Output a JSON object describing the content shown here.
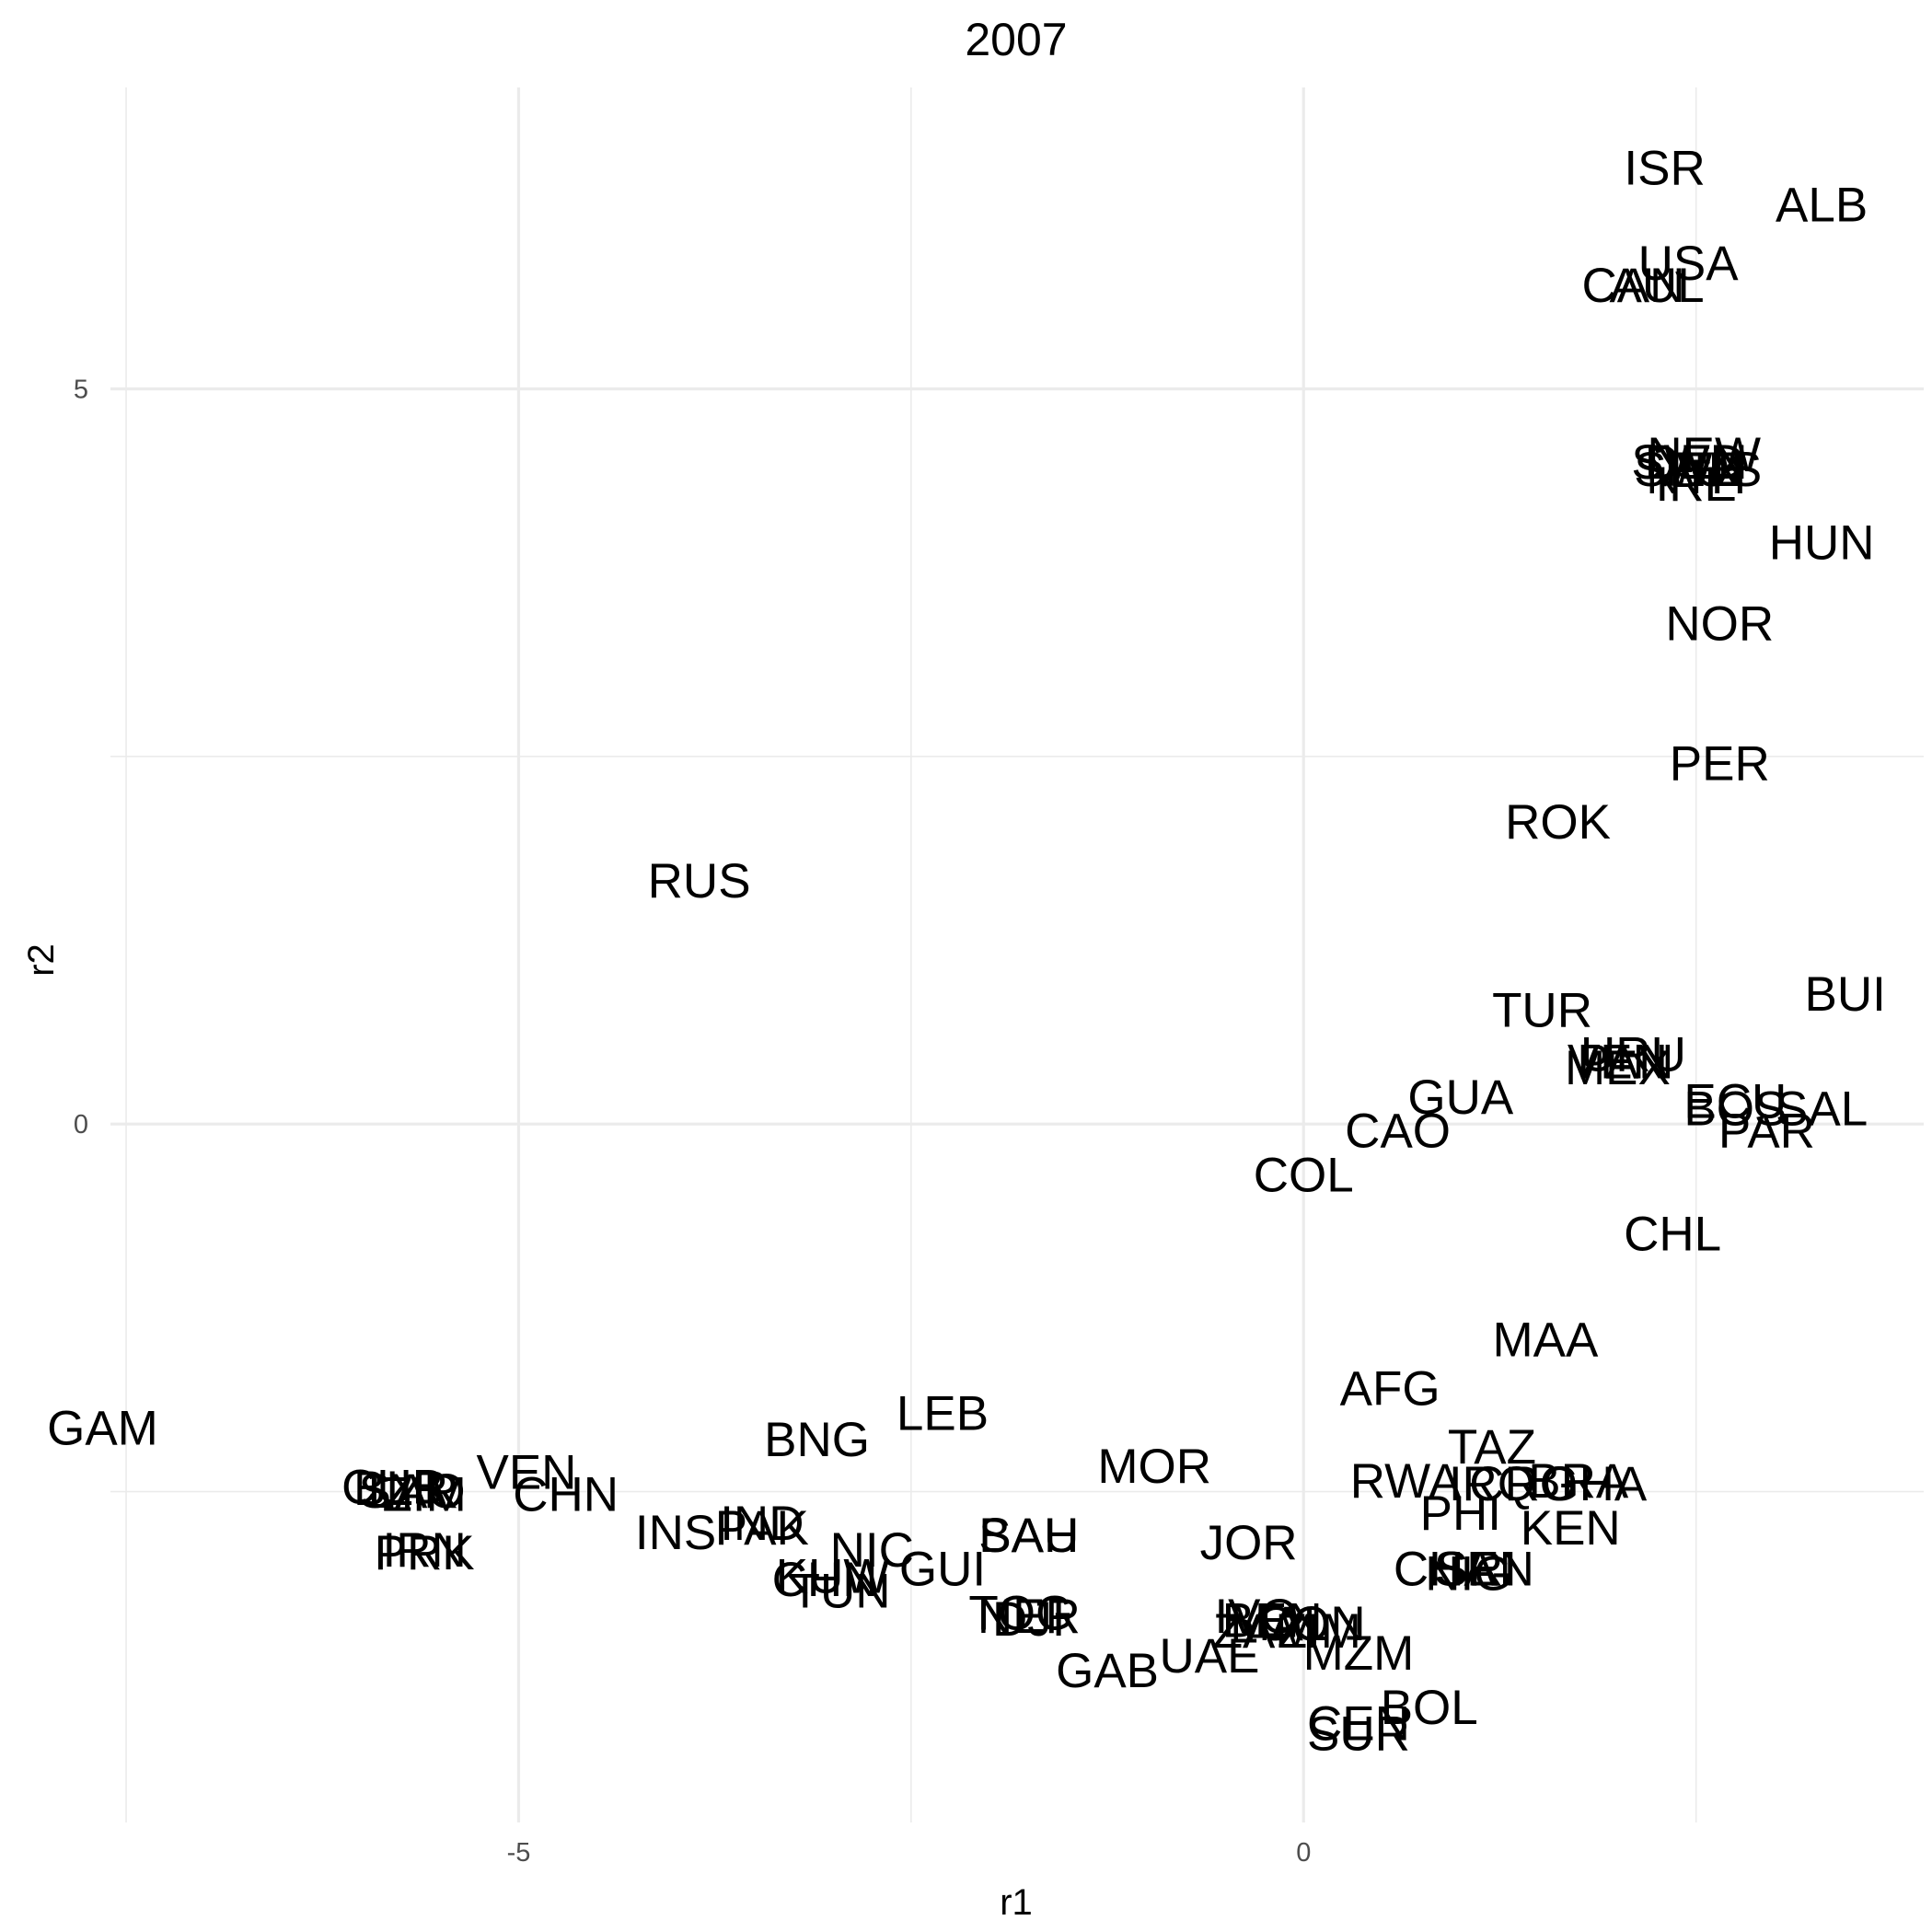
{
  "chart_data": {
    "type": "scatter",
    "title": "2007",
    "xlabel": "r1",
    "ylabel": "r2",
    "xlim": [
      -7.6,
      3.95
    ],
    "ylim": [
      -4.75,
      7.05
    ],
    "x_breaks": [
      -5,
      0
    ],
    "x_tick_labels": [
      "-5",
      "0"
    ],
    "x_minor_breaks": [
      -7.5,
      -2.5,
      2.5
    ],
    "y_breaks": [
      0,
      5
    ],
    "y_tick_labels": [
      "0",
      "5"
    ],
    "y_minor_breaks": [
      -2.5,
      2.5
    ],
    "grid": true,
    "points": [
      {
        "label": "ISR",
        "x": 2.3,
        "y": 6.5
      },
      {
        "label": "ALB",
        "x": 3.3,
        "y": 6.25
      },
      {
        "label": "USA",
        "x": 2.45,
        "y": 5.85
      },
      {
        "label": "CAN",
        "x": 2.1,
        "y": 5.7
      },
      {
        "label": "AUL",
        "x": 2.25,
        "y": 5.7
      },
      {
        "label": "NEW",
        "x": 2.55,
        "y": 4.55
      },
      {
        "label": "SWD",
        "x": 2.45,
        "y": 4.5
      },
      {
        "label": "DEN",
        "x": 2.5,
        "y": 4.5
      },
      {
        "label": "FIN",
        "x": 2.55,
        "y": 4.45
      },
      {
        "label": "NTH",
        "x": 2.5,
        "y": 4.4
      },
      {
        "label": "SWZ",
        "x": 2.45,
        "y": 4.45
      },
      {
        "label": "AUS",
        "x": 2.6,
        "y": 4.45
      },
      {
        "label": "IRE",
        "x": 2.5,
        "y": 4.35
      },
      {
        "label": "HUN",
        "x": 3.3,
        "y": 3.95
      },
      {
        "label": "NOR",
        "x": 2.65,
        "y": 3.4
      },
      {
        "label": "PER",
        "x": 2.65,
        "y": 2.45
      },
      {
        "label": "ROK",
        "x": 1.62,
        "y": 2.05
      },
      {
        "label": "RUS",
        "x": -3.85,
        "y": 1.65
      },
      {
        "label": "BUI",
        "x": 3.45,
        "y": 0.88
      },
      {
        "label": "TUR",
        "x": 1.52,
        "y": 0.77
      },
      {
        "label": "URU",
        "x": 2.1,
        "y": 0.47
      },
      {
        "label": "VEN",
        "x": 2.0,
        "y": 0.42
      },
      {
        "label": "PAN",
        "x": 2.05,
        "y": 0.42
      },
      {
        "label": "MEX",
        "x": 2.0,
        "y": 0.38
      },
      {
        "label": "ECU",
        "x": 2.75,
        "y": 0.15
      },
      {
        "label": "BOS",
        "x": 2.75,
        "y": 0.1
      },
      {
        "label": "SAL",
        "x": 3.3,
        "y": 0.1
      },
      {
        "label": "GUA",
        "x": 1.0,
        "y": 0.18
      },
      {
        "label": "CAO",
        "x": 0.6,
        "y": -0.05
      },
      {
        "label": "PAR",
        "x": 2.95,
        "y": -0.05
      },
      {
        "label": "COL",
        "x": 0.0,
        "y": -0.35
      },
      {
        "label": "CHL",
        "x": 2.35,
        "y": -0.75
      },
      {
        "label": "MAA",
        "x": 1.54,
        "y": -1.47
      },
      {
        "label": "AFG",
        "x": 0.55,
        "y": -1.8
      },
      {
        "label": "LEB",
        "x": -2.3,
        "y": -1.97
      },
      {
        "label": "GAM",
        "x": -7.65,
        "y": -2.07
      },
      {
        "label": "BNG",
        "x": -3.1,
        "y": -2.15
      },
      {
        "label": "TAZ",
        "x": 1.2,
        "y": -2.2
      },
      {
        "label": "MOR",
        "x": -0.95,
        "y": -2.33
      },
      {
        "label": "RWA",
        "x": 0.65,
        "y": -2.43
      },
      {
        "label": "IRQ",
        "x": 1.2,
        "y": -2.45
      },
      {
        "label": "CRO",
        "x": 1.4,
        "y": -2.45
      },
      {
        "label": "GHA",
        "x": 1.85,
        "y": -2.45
      },
      {
        "label": "BRA",
        "x": 1.75,
        "y": -2.43
      },
      {
        "label": "PHI",
        "x": 1.0,
        "y": -2.65
      },
      {
        "label": "KEN",
        "x": 1.7,
        "y": -2.75
      },
      {
        "label": "VEN",
        "x": -4.95,
        "y": -2.37
      },
      {
        "label": "CUB",
        "x": -5.8,
        "y": -2.47
      },
      {
        "label": "BLR",
        "x": -5.75,
        "y": -2.48
      },
      {
        "label": "SYR",
        "x": -5.7,
        "y": -2.5
      },
      {
        "label": "LAO",
        "x": -5.65,
        "y": -2.5
      },
      {
        "label": "ZIM",
        "x": -5.6,
        "y": -2.52
      },
      {
        "label": "CHN",
        "x": -4.7,
        "y": -2.52
      },
      {
        "label": "INS",
        "x": -4.0,
        "y": -2.78
      },
      {
        "label": "PAK",
        "x": -3.45,
        "y": -2.75
      },
      {
        "label": "IND",
        "x": -3.45,
        "y": -2.72
      },
      {
        "label": "NIC",
        "x": -2.75,
        "y": -2.9
      },
      {
        "label": "PRK",
        "x": -5.6,
        "y": -2.92
      },
      {
        "label": "IRN",
        "x": -5.6,
        "y": -2.9
      },
      {
        "label": "KUW",
        "x": -3.0,
        "y": -3.08
      },
      {
        "label": "CHN",
        "x": -3.05,
        "y": -3.1
      },
      {
        "label": "TUN",
        "x": -2.95,
        "y": -3.18
      },
      {
        "label": "GUI",
        "x": -2.3,
        "y": -3.03
      },
      {
        "label": "SAU",
        "x": -1.75,
        "y": -2.8
      },
      {
        "label": "BAH",
        "x": -1.75,
        "y": -2.8
      },
      {
        "label": "JOR",
        "x": -0.35,
        "y": -2.85
      },
      {
        "label": "CHA",
        "x": 0.9,
        "y": -3.03
      },
      {
        "label": "SRI",
        "x": 1.1,
        "y": -3.03
      },
      {
        "label": "NIG",
        "x": 1.05,
        "y": -3.06
      },
      {
        "label": "SEN",
        "x": 1.15,
        "y": -3.03
      },
      {
        "label": "TOG",
        "x": -1.8,
        "y": -3.33
      },
      {
        "label": "NER",
        "x": -1.75,
        "y": -3.35
      },
      {
        "label": "DJI",
        "x": -1.75,
        "y": -3.37
      },
      {
        "label": "IVO",
        "x": -0.3,
        "y": -3.35
      },
      {
        "label": "ZAM",
        "x": -0.25,
        "y": -3.45
      },
      {
        "label": "MAL",
        "x": -0.15,
        "y": -3.4
      },
      {
        "label": "BEN",
        "x": -0.2,
        "y": -3.38
      },
      {
        "label": "CON",
        "x": 0.05,
        "y": -3.4
      },
      {
        "label": "ZIM",
        "x": 0.1,
        "y": -3.45
      },
      {
        "label": "MZM",
        "x": 0.35,
        "y": -3.6
      },
      {
        "label": "UAE",
        "x": -0.6,
        "y": -3.62
      },
      {
        "label": "GAB",
        "x": -1.25,
        "y": -3.72
      },
      {
        "label": "BOL",
        "x": 0.8,
        "y": -3.97
      },
      {
        "label": "CEN",
        "x": 0.35,
        "y": -4.08
      },
      {
        "label": "SUR",
        "x": 0.35,
        "y": -4.15
      }
    ]
  }
}
